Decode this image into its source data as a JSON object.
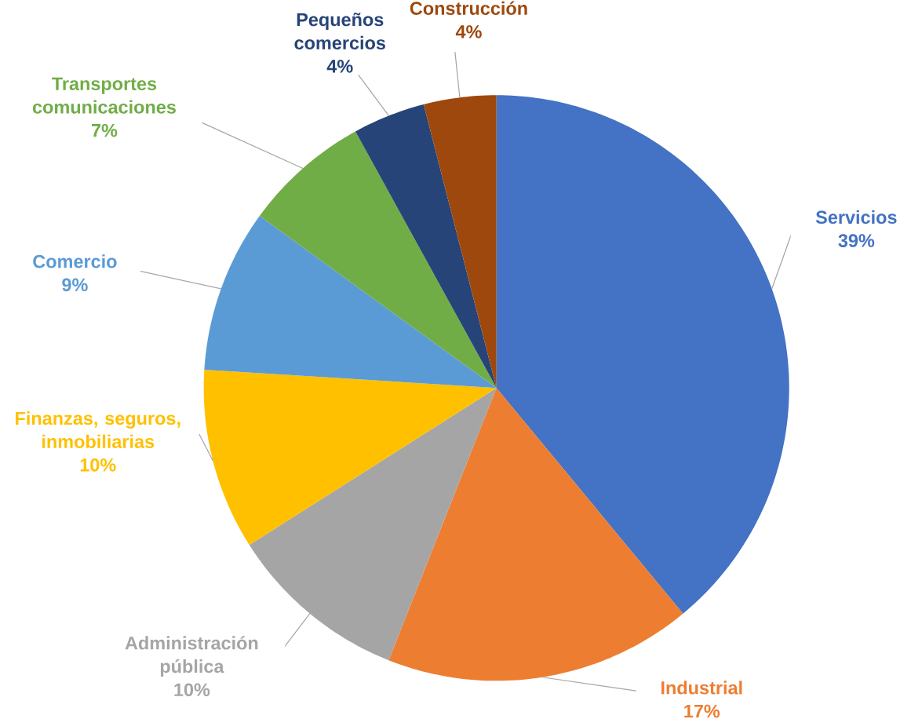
{
  "chart_data": {
    "type": "pie",
    "categories": [
      "Servicios",
      "Industrial",
      "Administración pública",
      "Finanzas, seguros, inmobiliarias",
      "Comercio",
      "Transportes comunicaciones",
      "Pequeños comercios",
      "Construcción"
    ],
    "values": [
      39,
      17,
      10,
      10,
      9,
      7,
      4,
      4
    ],
    "value_labels": [
      "39%",
      "17%",
      "10%",
      "10%",
      "9%",
      "7%",
      "4%",
      "4%"
    ],
    "colors": [
      "#4472c4",
      "#ed7d31",
      "#a5a5a5",
      "#ffc000",
      "#5b9bd5",
      "#70ad47",
      "#264478",
      "#9e480e"
    ]
  }
}
